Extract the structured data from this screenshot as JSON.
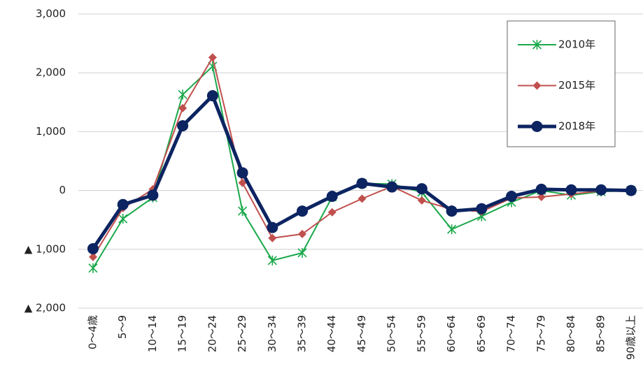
{
  "chart_data": {
    "type": "line",
    "categories": [
      "0～4歳",
      "5～9",
      "10～14",
      "15～19",
      "20～24",
      "25～29",
      "30～34",
      "35～39",
      "40～44",
      "45～49",
      "50～54",
      "55～59",
      "60～64",
      "65～69",
      "70～74",
      "75～79",
      "80～84",
      "85～89",
      "90歳以上"
    ],
    "series": [
      {
        "name": "2010年",
        "color": "#1aa84a",
        "marker": "asterisk",
        "values": [
          -1320,
          -480,
          -120,
          1630,
          2110,
          -350,
          -1190,
          -1060,
          -110,
          120,
          110,
          -30,
          -660,
          -440,
          -200,
          0,
          -80,
          -20,
          0
        ]
      },
      {
        "name": "2015年",
        "color": "#c0504d",
        "marker": "diamond",
        "values": [
          -1130,
          -300,
          20,
          1400,
          2260,
          130,
          -810,
          -740,
          -370,
          -140,
          70,
          -170,
          -320,
          -360,
          -130,
          -110,
          -60,
          -10,
          0
        ]
      },
      {
        "name": "2018年",
        "color": "#0c2461",
        "marker": "circle",
        "values": [
          -990,
          -240,
          -80,
          1100,
          1610,
          300,
          -630,
          -350,
          -100,
          120,
          60,
          30,
          -350,
          -310,
          -100,
          20,
          10,
          10,
          0
        ]
      }
    ],
    "ylim": [
      -2000,
      3000
    ],
    "yticks": [
      {
        "value": -2000,
        "label": "▲ 2,000"
      },
      {
        "value": -1000,
        "label": "▲ 1,000"
      },
      0,
      {
        "value": 1000,
        "label": "1,000"
      },
      {
        "value": 2000,
        "label": "2,000"
      },
      {
        "value": 3000,
        "label": "3,000"
      }
    ],
    "grid": true,
    "legend": "upper right"
  }
}
